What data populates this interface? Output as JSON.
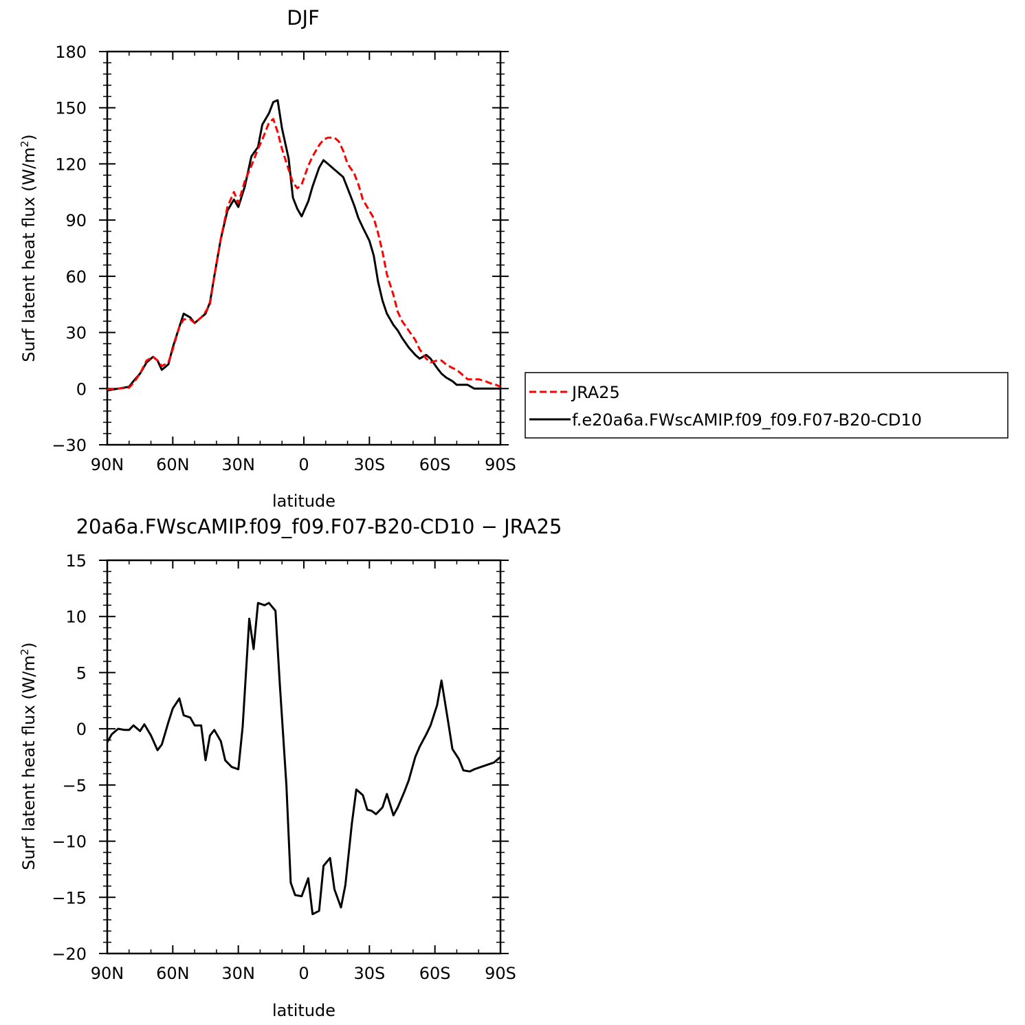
{
  "chart_data": [
    {
      "type": "line",
      "title": "DJF",
      "xlabel": "latitude",
      "ylabel": "Surf latent heat flux (W/m",
      "ylabel_sup": "2",
      "ylabel_end": ")",
      "xlim": [
        90,
        -90
      ],
      "ylim": [
        -30,
        180
      ],
      "xticks": [
        90,
        60,
        30,
        0,
        -30,
        -60,
        -90
      ],
      "xtick_labels": [
        "90N",
        "60N",
        "30N",
        "0",
        "30S",
        "60S",
        "90S"
      ],
      "yticks": [
        -30,
        0,
        30,
        60,
        90,
        120,
        150,
        180
      ],
      "ytick_labels": [
        "−30",
        "0",
        "30",
        "60",
        "90",
        "120",
        "150",
        "180"
      ],
      "legend_position": "right",
      "series": [
        {
          "name": "JRA25",
          "color": "#ff0000",
          "style": "dashed",
          "x": [
            90,
            85,
            80,
            78,
            75,
            72,
            69,
            67,
            65,
            62,
            60,
            57,
            55,
            52,
            50,
            47,
            45,
            43,
            41,
            38,
            35,
            32,
            30,
            27,
            24,
            21,
            19,
            16,
            14,
            12,
            10,
            7,
            5,
            3,
            1,
            -2,
            -4,
            -7,
            -9,
            -11,
            -14,
            -16,
            -18,
            -20,
            -23,
            -25,
            -27,
            -30,
            -32,
            -34,
            -36,
            -38,
            -41,
            -43,
            -45,
            -48,
            -51,
            -53,
            -56,
            -58,
            -61,
            -63,
            -65,
            -68,
            -70,
            -73,
            -75,
            -78,
            -80,
            -83,
            -85,
            -88,
            -90
          ],
          "y": [
            -0.5,
            0,
            0.5,
            3,
            8,
            15,
            17,
            15,
            12,
            14,
            21,
            33,
            37,
            37,
            35,
            38,
            41,
            45,
            60,
            80,
            97,
            105,
            99,
            111,
            119,
            128,
            133,
            142,
            144,
            137,
            128,
            117,
            110,
            107,
            109,
            119,
            124,
            130,
            133,
            134,
            134,
            132,
            127,
            120,
            115,
            109,
            101,
            95,
            91,
            83,
            73,
            61,
            50,
            41,
            36,
            31,
            26,
            21,
            16,
            14,
            15,
            15,
            13,
            11,
            10,
            7,
            5,
            5,
            5,
            4,
            3,
            2,
            1
          ]
        },
        {
          "name": "f.e20a6a.FWscAMIP.f09_f09.F07-B20-CD10",
          "color": "#000000",
          "style": "solid",
          "x": [
            90,
            85,
            80,
            78,
            75,
            72,
            69,
            67,
            65,
            62,
            60,
            57,
            55,
            52,
            50,
            47,
            45,
            43,
            41,
            38,
            35,
            32,
            30,
            27,
            24,
            21,
            19,
            16,
            14,
            12,
            10,
            7,
            5,
            3,
            1,
            -2,
            -4,
            -7,
            -9,
            -11,
            -14,
            -16,
            -18,
            -20,
            -23,
            -25,
            -27,
            -30,
            -32,
            -34,
            -36,
            -38,
            -41,
            -43,
            -45,
            -48,
            -51,
            -53,
            -56,
            -58,
            -61,
            -63,
            -65,
            -68,
            -70,
            -73,
            -75,
            -78,
            -80,
            -83,
            -85,
            -88,
            -90
          ],
          "y": [
            -1,
            0,
            1,
            4,
            8,
            14,
            17,
            15,
            10,
            13,
            22,
            33,
            40,
            38,
            35,
            38,
            40,
            46,
            60,
            80,
            95,
            101,
            97,
            108,
            124,
            129,
            141,
            147,
            153,
            154,
            139,
            123,
            102,
            96,
            92,
            100,
            108,
            118,
            122,
            120,
            117,
            115,
            113,
            107,
            98,
            91,
            86,
            79,
            71,
            57,
            47,
            40,
            34,
            31,
            27,
            22,
            18,
            16,
            18,
            16,
            11,
            8,
            6,
            4,
            2,
            2,
            2,
            0,
            0,
            0,
            0,
            0,
            0
          ]
        }
      ]
    },
    {
      "type": "line",
      "title": "20a6a.FWscAMIP.f09_f09.F07-B20-CD10 − JRA25",
      "xlabel": "latitude",
      "ylabel": "Surf latent heat flux (W/m",
      "ylabel_sup": "2",
      "ylabel_end": ")",
      "xlim": [
        90,
        -90
      ],
      "ylim": [
        -20,
        15
      ],
      "xticks": [
        90,
        60,
        30,
        0,
        -30,
        -60,
        -90
      ],
      "xtick_labels": [
        "90N",
        "60N",
        "30N",
        "0",
        "30S",
        "60S",
        "90S"
      ],
      "yticks": [
        -20,
        -15,
        -10,
        -5,
        0,
        5,
        10,
        15
      ],
      "ytick_labels": [
        "−20",
        "−15",
        "−10",
        "−5",
        "0",
        "5",
        "10",
        "15"
      ],
      "series": [
        {
          "color": "#000000",
          "style": "solid",
          "x": [
            90,
            88,
            85,
            82,
            80,
            78,
            75,
            73,
            70,
            67,
            65,
            62,
            60,
            57,
            55,
            52,
            50,
            47,
            45,
            43,
            41,
            38,
            36,
            33,
            30,
            28,
            25,
            23,
            21,
            18,
            16,
            13,
            11,
            8,
            6,
            4,
            1,
            -2,
            -4,
            -7,
            -9,
            -12,
            -14,
            -17,
            -19,
            -22,
            -24,
            -27,
            -29,
            -31,
            -33,
            -36,
            -38,
            -41,
            -43,
            -46,
            -48,
            -51,
            -53,
            -56,
            -58,
            -61,
            -63,
            -66,
            -68,
            -71,
            -73,
            -76,
            -78,
            -81,
            -84,
            -87,
            -90
          ],
          "y": [
            -1.2,
            -0.5,
            0,
            -0.1,
            -0.1,
            0.3,
            -0.2,
            0.4,
            -0.6,
            -1.9,
            -1.4,
            0.6,
            1.8,
            2.7,
            1.2,
            1.0,
            0.3,
            0.3,
            -2.8,
            -0.6,
            -0.1,
            -1.1,
            -2.8,
            -3.4,
            -3.6,
            0.2,
            9.8,
            7.1,
            11.2,
            11.0,
            11.2,
            10.5,
            4.0,
            -5.0,
            -13.7,
            -14.8,
            -14.9,
            -13.3,
            -16.5,
            -16.2,
            -12.2,
            -11.5,
            -14.3,
            -15.9,
            -13.9,
            -8.4,
            -5.4,
            -5.9,
            -7.2,
            -7.3,
            -7.6,
            -7.0,
            -5.8,
            -7.7,
            -7.0,
            -5.6,
            -4.6,
            -2.5,
            -1.6,
            -0.5,
            0.3,
            2.1,
            4.3,
            0.7,
            -1.8,
            -2.7,
            -3.7,
            -3.8,
            -3.6,
            -3.4,
            -3.2,
            -3.0,
            -2.5
          ]
        }
      ]
    }
  ]
}
